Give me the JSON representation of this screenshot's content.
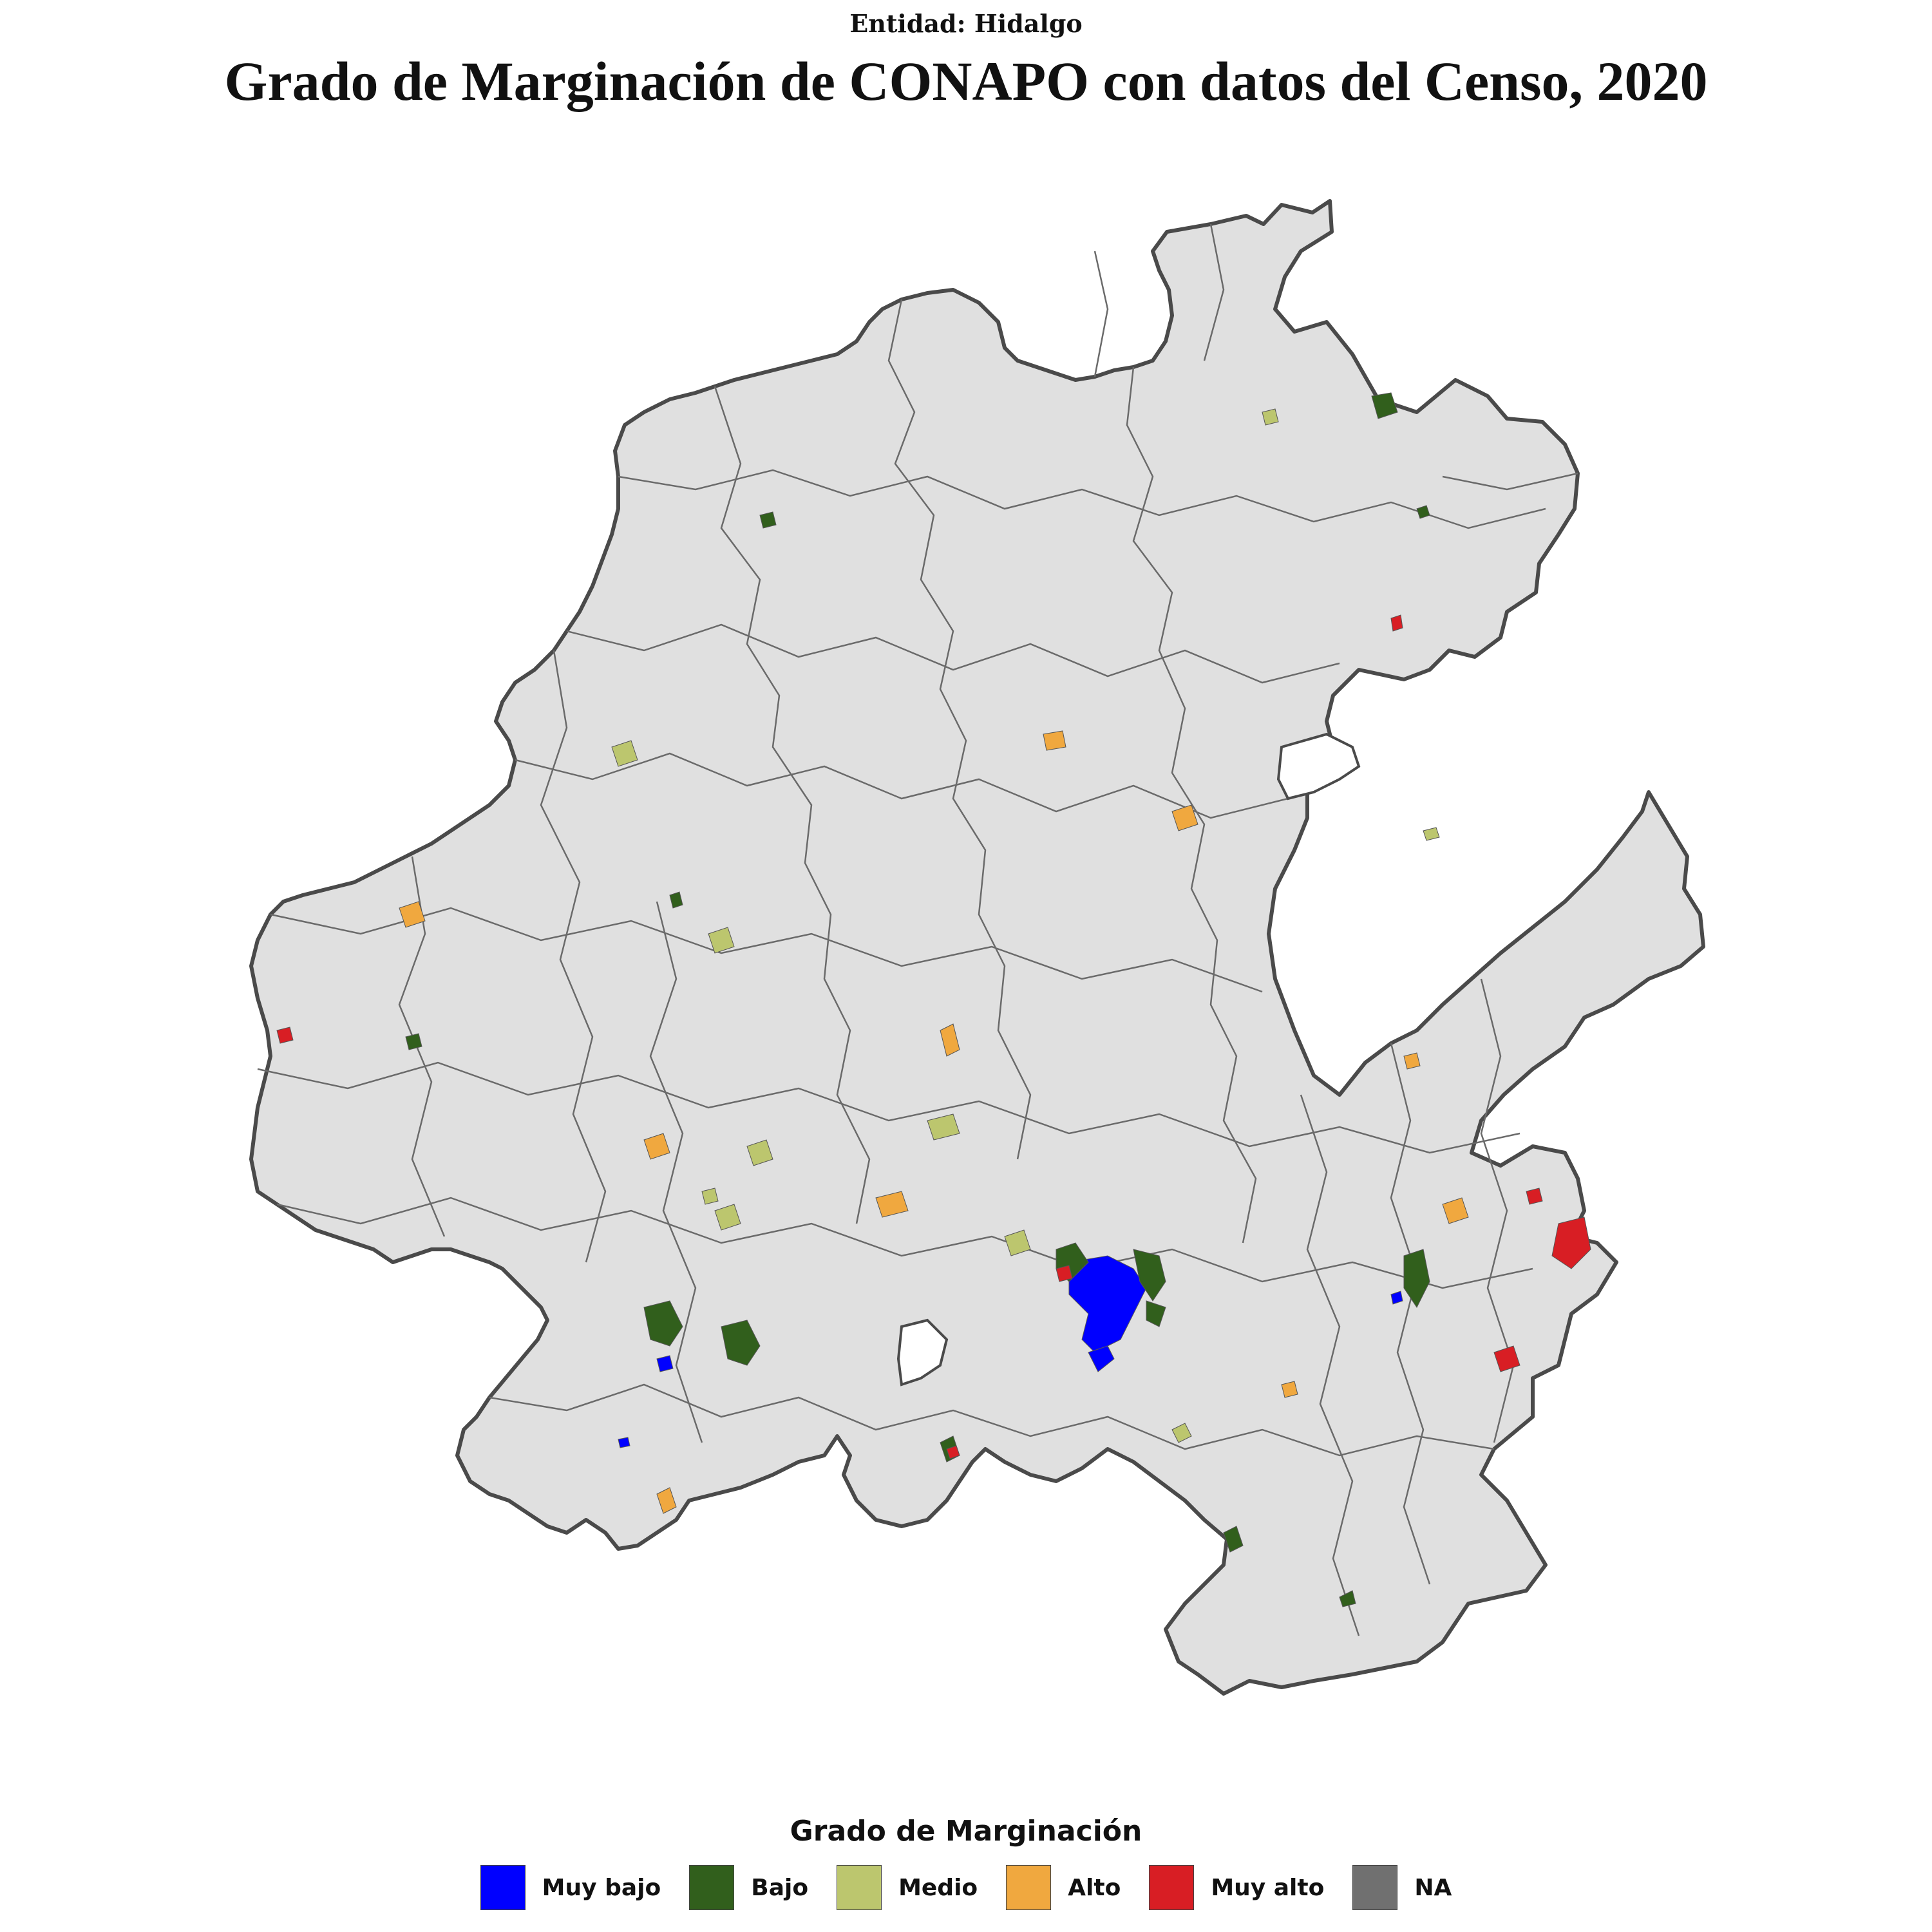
{
  "header": {
    "subtitle": "Entidad: Hidalgo",
    "title": "Grado de Marginación de CONAPO con datos del Censo, 2020"
  },
  "legend": {
    "title": "Grado de Marginación",
    "items": [
      {
        "label": "Muy bajo",
        "color": "#0000ff"
      },
      {
        "label": "Bajo",
        "color": "#315f1c"
      },
      {
        "label": "Medio",
        "color": "#bcc66e"
      },
      {
        "label": "Alto",
        "color": "#f0a83f"
      },
      {
        "label": "Muy alto",
        "color": "#d81e24"
      },
      {
        "label": "NA",
        "color": "#707070"
      }
    ]
  },
  "map": {
    "base_fill": "#e0e0e0",
    "border_color": "#4a4a4a"
  }
}
